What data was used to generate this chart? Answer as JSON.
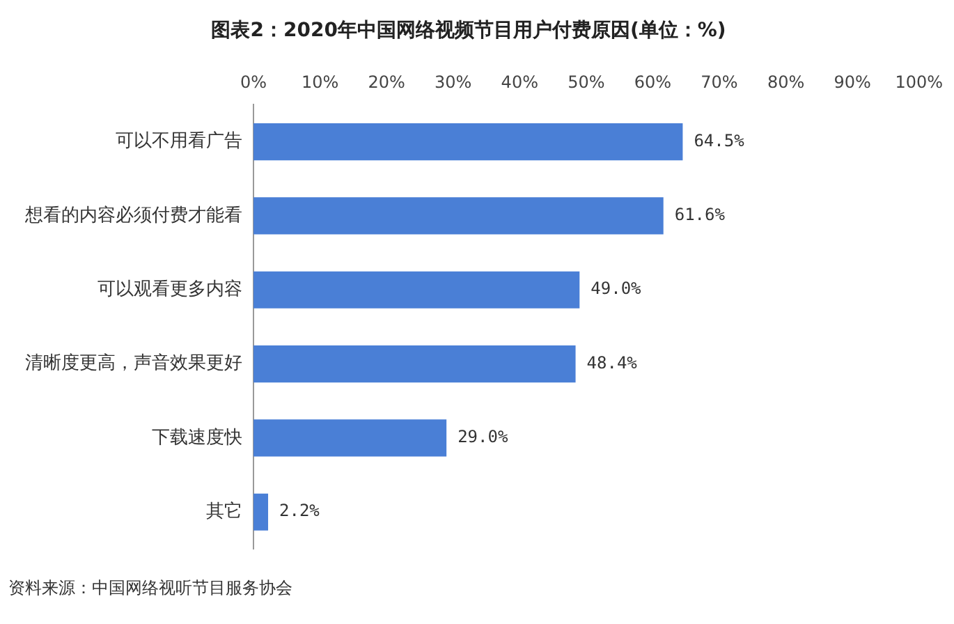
{
  "chart_data": {
    "type": "bar",
    "orientation": "horizontal",
    "title": "图表2：2020年中国网络视频节目用户付费原因(单位：%)",
    "categories": [
      "可以不用看广告",
      "想看的内容必须付费才能看",
      "可以观看更多内容",
      "清晰度更高，声音效果更好",
      "下载速度快",
      "其它"
    ],
    "values": [
      64.5,
      61.6,
      49.0,
      48.4,
      29.0,
      2.2
    ],
    "value_labels": [
      "64.5%",
      "61.6%",
      "49.0%",
      "48.4%",
      "29.0%",
      "2.2%"
    ],
    "color": "#4a7fd6",
    "xlim": [
      0,
      100
    ],
    "xticks": [
      {
        "value": 0,
        "label": "0%"
      },
      {
        "value": 10,
        "label": "10%"
      },
      {
        "value": 20,
        "label": "20%"
      },
      {
        "value": 30,
        "label": "30%"
      },
      {
        "value": 40,
        "label": "40%"
      },
      {
        "value": 50,
        "label": "50%"
      },
      {
        "value": 60,
        "label": "60%"
      },
      {
        "value": 70,
        "label": "70%"
      },
      {
        "value": 80,
        "label": "80%"
      },
      {
        "value": 90,
        "label": "90%"
      },
      {
        "value": 100,
        "label": "100%"
      }
    ],
    "grid": false,
    "annotations": [
      "资料来源：中国网络视听节目服务协会"
    ]
  }
}
